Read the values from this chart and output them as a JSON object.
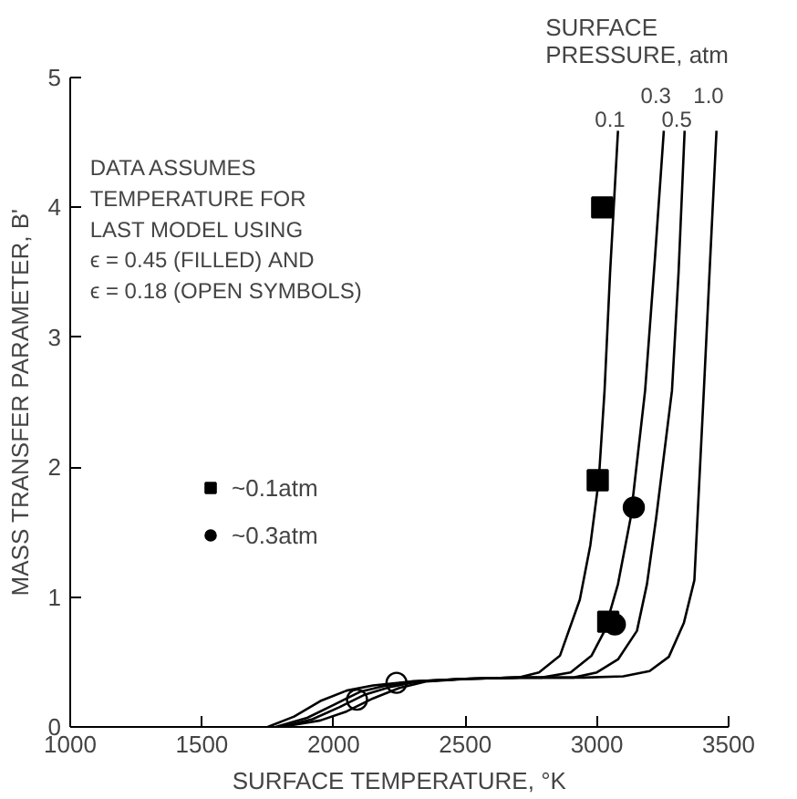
{
  "chart_data": {
    "type": "line",
    "xlabel": "SURFACE TEMPERATURE, °K",
    "ylabel": "MASS TRANSFER PARAMETER, B'",
    "legend_title": "SURFACE\nPRESSURE, atm",
    "annotations": [
      "DATA ASSUMES\nTEMPERATURE FOR\nLAST MODEL USING\nϵ = 0.45 (FILLED) AND\nϵ = 0.18 (OPEN SYMBOLS)"
    ],
    "xlim": [
      1000,
      3500
    ],
    "ylim": [
      0,
      5
    ],
    "xticks": [
      1000,
      1500,
      2000,
      2500,
      3000,
      3500
    ],
    "yticks": [
      0,
      1,
      2,
      3,
      4,
      5
    ],
    "grid": false,
    "legend": "left",
    "series": [
      {
        "name": "0.1",
        "color": "#000000",
        "x": [
          1750,
          1850,
          1950,
          2050,
          2150,
          2300,
          2500,
          2700,
          2780,
          2860,
          2935,
          2975,
          3007,
          3029,
          3050,
          3080
        ],
        "values": [
          0,
          0.08,
          0.2,
          0.28,
          0.32,
          0.35,
          0.37,
          0.38,
          0.42,
          0.55,
          0.98,
          1.4,
          1.9,
          2.59,
          3.5,
          4.59
        ]
      },
      {
        "name": "0.3",
        "color": "#000000",
        "x": [
          1780,
          1900,
          2000,
          2100,
          2200,
          2300,
          2500,
          2700,
          2790,
          2900,
          2980,
          3029,
          3080,
          3128,
          3183,
          3220,
          3254
        ],
        "values": [
          0,
          0.07,
          0.17,
          0.27,
          0.32,
          0.35,
          0.37,
          0.38,
          0.38,
          0.42,
          0.55,
          0.74,
          1.1,
          1.61,
          2.59,
          3.6,
          4.59
        ]
      },
      {
        "name": "0.5",
        "color": "#000000",
        "x": [
          1800,
          1920,
          2020,
          2120,
          2220,
          2320,
          2500,
          2700,
          2911,
          3000,
          3080,
          3152,
          3190,
          3225,
          3285,
          3310,
          3333
        ],
        "values": [
          0,
          0.06,
          0.15,
          0.25,
          0.31,
          0.35,
          0.37,
          0.38,
          0.38,
          0.42,
          0.52,
          0.74,
          1.1,
          1.61,
          2.59,
          3.5,
          4.59
        ]
      },
      {
        "name": "1.0",
        "color": "#000000",
        "x": [
          1800,
          1950,
          2050,
          2150,
          2250,
          2350,
          2500,
          2700,
          2950,
          3100,
          3200,
          3273,
          3330,
          3370,
          3406,
          3430,
          3454
        ],
        "values": [
          0,
          0.05,
          0.12,
          0.22,
          0.3,
          0.35,
          0.37,
          0.38,
          0.38,
          0.39,
          0.43,
          0.54,
          0.8,
          1.13,
          2.59,
          3.6,
          4.59
        ]
      },
      {
        "name": "~0.1atm",
        "type": "scatter",
        "marker": "square",
        "color": "#000000",
        "x": [
          3020,
          3003,
          3043
        ],
        "values": [
          4.0,
          1.9,
          0.81
        ]
      },
      {
        "name": "~0.3atm",
        "type": "scatter",
        "marker": "circle",
        "color": "#000000",
        "x": [
          3140,
          3068
        ],
        "values": [
          1.69,
          0.79
        ]
      },
      {
        "type": "scatter",
        "marker": "circle",
        "color": "#ffffff",
        "x": [
          2089,
          2239
        ],
        "values": [
          0.21,
          0.34
        ]
      }
    ]
  }
}
